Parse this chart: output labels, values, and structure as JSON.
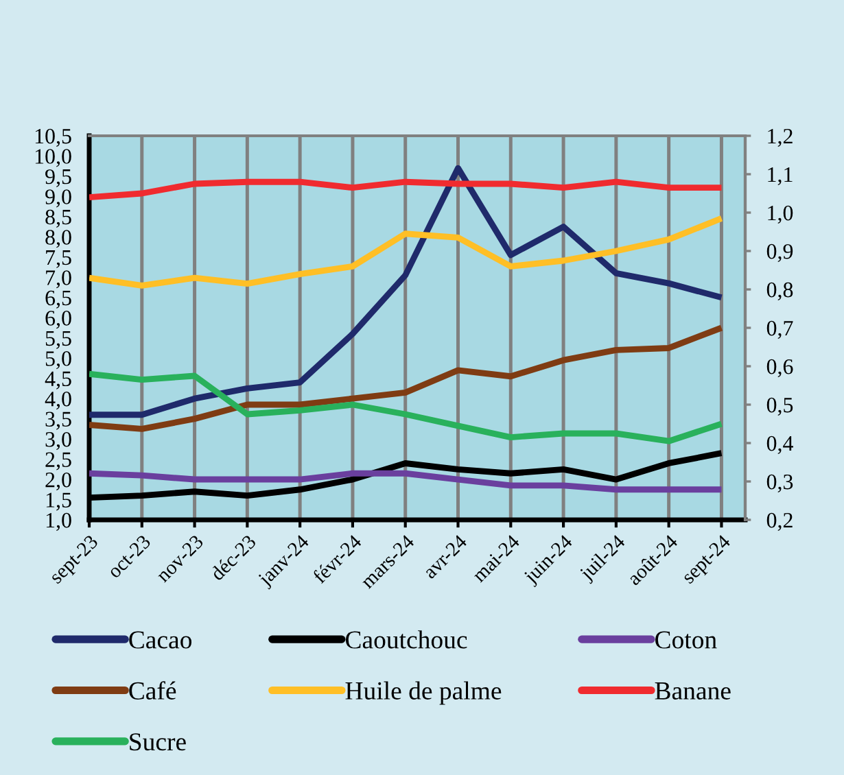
{
  "chart_data": {
    "type": "line",
    "categories": [
      "sept-23",
      "oct-23",
      "nov-23",
      "déc-23",
      "janv-24",
      "févr-24",
      "mars-24",
      "avr-24",
      "mai-24",
      "juin-24",
      "juil-24",
      "août-24",
      "sept-24"
    ],
    "series": [
      {
        "name": "Cacao",
        "color": "#1f2a6b",
        "values": [
          3.6,
          3.6,
          4.0,
          4.25,
          4.4,
          5.6,
          7.05,
          9.7,
          7.55,
          8.25,
          7.1,
          6.85,
          6.5
        ]
      },
      {
        "name": "Caoutchouc",
        "color": "#000000",
        "values": [
          1.55,
          1.6,
          1.7,
          1.6,
          1.75,
          2.0,
          2.4,
          2.25,
          2.15,
          2.25,
          2.0,
          2.4,
          2.65
        ]
      },
      {
        "name": "Coton",
        "color": "#6a3f9e",
        "values": [
          2.15,
          2.1,
          2.0,
          2.0,
          2.0,
          2.15,
          2.15,
          2.0,
          1.85,
          1.85,
          1.75,
          1.75,
          1.75
        ]
      },
      {
        "name": "Café",
        "color": "#7f3c13",
        "values": [
          3.35,
          3.25,
          3.5,
          3.85,
          3.85,
          4.0,
          4.15,
          4.7,
          4.55,
          4.95,
          5.2,
          5.25,
          5.75
        ]
      },
      {
        "name": "Huile de palme",
        "color": "#ffbf26",
        "axis": "y2",
        "values": [
          0.83,
          0.81,
          0.83,
          0.815,
          0.84,
          0.86,
          0.945,
          0.935,
          0.86,
          0.875,
          0.9,
          0.93,
          0.985
        ]
      },
      {
        "name": "Banane",
        "color": "#f02b2f",
        "axis": "y2",
        "values": [
          1.04,
          1.05,
          1.075,
          1.08,
          1.08,
          1.065,
          1.08,
          1.075,
          1.075,
          1.065,
          1.08,
          1.065,
          1.065
        ]
      },
      {
        "name": "Sucre",
        "color": "#29b15c",
        "axis": "y2",
        "values": [
          0.58,
          0.565,
          0.575,
          0.475,
          0.485,
          0.5,
          0.475,
          0.445,
          0.415,
          0.425,
          0.425,
          0.405,
          0.45
        ]
      }
    ],
    "ylim": [
      1.0,
      10.5
    ],
    "yticks": [
      {
        "value": 1.0,
        "label": "1,0"
      },
      {
        "value": 1.5,
        "label": "1,5"
      },
      {
        "value": 2.0,
        "label": "2,0"
      },
      {
        "value": 2.5,
        "label": "2,5"
      },
      {
        "value": 3.0,
        "label": "3,0"
      },
      {
        "value": 3.5,
        "label": "3,5"
      },
      {
        "value": 4.0,
        "label": "4,0"
      },
      {
        "value": 4.5,
        "label": "4,5"
      },
      {
        "value": 5.0,
        "label": "5,0"
      },
      {
        "value": 5.5,
        "label": "5,5"
      },
      {
        "value": 6.0,
        "label": "6,0"
      },
      {
        "value": 6.5,
        "label": "6,5"
      },
      {
        "value": 7.0,
        "label": "7,0"
      },
      {
        "value": 7.5,
        "label": "7,5"
      },
      {
        "value": 8.0,
        "label": "8,0"
      },
      {
        "value": 8.5,
        "label": "8,5"
      },
      {
        "value": 9.0,
        "label": "9,0"
      },
      {
        "value": 9.5,
        "label": "9,5"
      },
      {
        "value": 10.0,
        "label": "10,0"
      },
      {
        "value": 10.5,
        "label": "10,5"
      }
    ],
    "y2lim": [
      0.2,
      1.2
    ],
    "y2ticks": [
      {
        "value": 0.2,
        "label": "0,2"
      },
      {
        "value": 0.3,
        "label": "0,3"
      },
      {
        "value": 0.4,
        "label": "0,4"
      },
      {
        "value": 0.5,
        "label": "0,5"
      },
      {
        "value": 0.6,
        "label": "0,6"
      },
      {
        "value": 0.7,
        "label": "0,7"
      },
      {
        "value": 0.8,
        "label": "0,8"
      },
      {
        "value": 0.9,
        "label": "0,9"
      },
      {
        "value": 1.0,
        "label": "1,0"
      },
      {
        "value": 1.1,
        "label": "1,1"
      },
      {
        "value": 1.2,
        "label": "1,2"
      }
    ],
    "grid": "x",
    "legend": "bottom"
  }
}
